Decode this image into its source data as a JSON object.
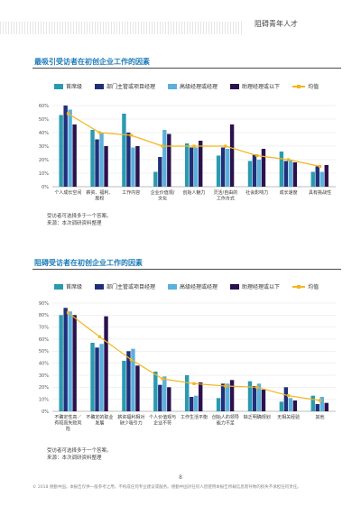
{
  "header": {
    "title": "阻碍青年人才"
  },
  "colors": {
    "accent_blue": "#1b7ab8",
    "series": [
      "#2a9ab0",
      "#1f2f7a",
      "#5bb0dc",
      "#2b124e"
    ],
    "line": "#f2b61f"
  },
  "section1": {
    "title": "最吸引受访者在初创企业工作的因素"
  },
  "section2": {
    "title": "阻碍受访者在初创企业工作的因素"
  },
  "legend": {
    "s1": "首席级",
    "s2": "部门主管或项目经理",
    "s3": "高级经理或经理",
    "s4": "助理经理或以下",
    "line": "均值"
  },
  "chart_data": [
    {
      "type": "bar",
      "title": "最吸引受访者在初创企业工作的因素",
      "categories": [
        "个人成长空间",
        "薪资、福利、股权",
        "工作内容",
        "企业价值观/文化",
        "创始人魅力",
        "灵活/自由的工作方式",
        "社会影响力",
        "成长速度",
        "具有挑战性"
      ],
      "ylim": [
        0,
        70
      ],
      "yticks": [
        "0%",
        "10%",
        "20%",
        "30%",
        "40%",
        "50%",
        "60%"
      ],
      "series": [
        {
          "name": "首席级",
          "values": [
            53,
            42,
            54,
            11,
            32,
            23,
            19,
            26,
            11
          ]
        },
        {
          "name": "部门主管或项目经理",
          "values": [
            60,
            35,
            40,
            22,
            29,
            29,
            24,
            19,
            15
          ]
        },
        {
          "name": "高级经理或经理",
          "values": [
            57,
            40,
            29,
            42,
            29,
            28,
            20,
            20,
            11
          ]
        },
        {
          "name": "助理经理或以下",
          "values": [
            46,
            30,
            30,
            39,
            34,
            46,
            28,
            18,
            16
          ]
        }
      ],
      "mean": {
        "name": "均值",
        "values": [
          54,
          40,
          38,
          30,
          30,
          30,
          23,
          20,
          15
        ]
      },
      "note": "受访者可选择多于一个答案。",
      "source": "来源：本次调研资料整理"
    },
    {
      "type": "bar",
      "title": "阻碍受访者在初创企业工作的因素",
      "categories": [
        "不确定性高／有较高失败风险",
        "不确定的职业发展",
        "薪资福利相对缺少吸引力",
        "个人价值观与企业不符",
        "工作生活平衡",
        "创始人的领导能力不足",
        "缺乏明确规划",
        "无相关经验",
        "其他"
      ],
      "ylim": [
        0,
        90
      ],
      "yticks": [
        "0%",
        "10%",
        "20%",
        "30%",
        "40%",
        "50%",
        "60%",
        "70%",
        "80%",
        "90%"
      ],
      "series": [
        {
          "name": "首席级",
          "values": [
            80,
            57,
            42,
            33,
            30,
            11,
            25,
            8,
            13
          ]
        },
        {
          "name": "部门主管或项目经理",
          "values": [
            86,
            53,
            50,
            22,
            12,
            23,
            21,
            20,
            6
          ]
        },
        {
          "name": "高级经理或经理",
          "values": [
            83,
            56,
            52,
            29,
            13,
            23,
            23,
            11,
            12
          ]
        },
        {
          "name": "助理经理或以下",
          "values": [
            80,
            79,
            38,
            20,
            24,
            26,
            18,
            9,
            7
          ]
        }
      ],
      "mean": {
        "name": "均值",
        "values": [
          82,
          62,
          43,
          27,
          23,
          21,
          20,
          13,
          9
        ]
      },
      "note": "受访者可选择多于一个答案。",
      "source": "来源：本次调研资料整理"
    }
  ],
  "page_number": "8",
  "footer": "© 2018 德勤中国。本报告仅供一般参考之用，不构成任何专业建议或服务。德勤中国对任何人因使用本报告所载信息而导致的损失不承担任何责任。"
}
